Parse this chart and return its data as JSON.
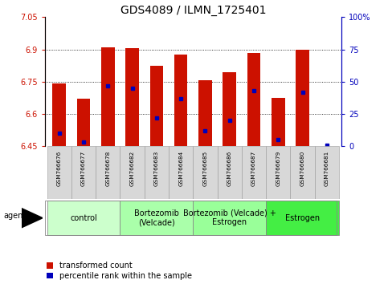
{
  "title": "GDS4089 / ILMN_1725401",
  "samples": [
    "GSM766676",
    "GSM766677",
    "GSM766678",
    "GSM766682",
    "GSM766683",
    "GSM766684",
    "GSM766685",
    "GSM766686",
    "GSM766687",
    "GSM766679",
    "GSM766680",
    "GSM766681"
  ],
  "bar_values": [
    6.74,
    6.67,
    6.91,
    6.905,
    6.825,
    6.875,
    6.755,
    6.795,
    6.885,
    6.675,
    6.9,
    6.452
  ],
  "bar_base": 6.45,
  "percentile_values": [
    10,
    3,
    47,
    45,
    22,
    37,
    12,
    20,
    43,
    5,
    42,
    1
  ],
  "ylim_left": [
    6.45,
    7.05
  ],
  "ylim_right": [
    0,
    100
  ],
  "yticks_left": [
    6.45,
    6.6,
    6.75,
    6.9,
    7.05
  ],
  "yticks_right": [
    0,
    25,
    50,
    75,
    100
  ],
  "bar_color": "#cc1100",
  "dot_color": "#0000bb",
  "bar_width": 0.55,
  "groups": [
    {
      "label": "control",
      "start": 0,
      "end": 3,
      "color": "#ccffcc"
    },
    {
      "label": "Bortezomib\n(Velcade)",
      "start": 3,
      "end": 6,
      "color": "#aaffaa"
    },
    {
      "label": "Bortezomib (Velcade) +\nEstrogen",
      "start": 6,
      "end": 9,
      "color": "#99ff99"
    },
    {
      "label": "Estrogen",
      "start": 9,
      "end": 12,
      "color": "#44ee44"
    }
  ],
  "legend_labels": [
    "transformed count",
    "percentile rank within the sample"
  ],
  "legend_colors": [
    "#cc1100",
    "#0000bb"
  ],
  "agent_label": "agent",
  "left_axis_color": "#cc1100",
  "right_axis_color": "#0000bb",
  "title_fontsize": 10,
  "tick_fontsize": 7,
  "sample_fontsize": 5.5,
  "group_fontsize": 7,
  "legend_fontsize": 7
}
